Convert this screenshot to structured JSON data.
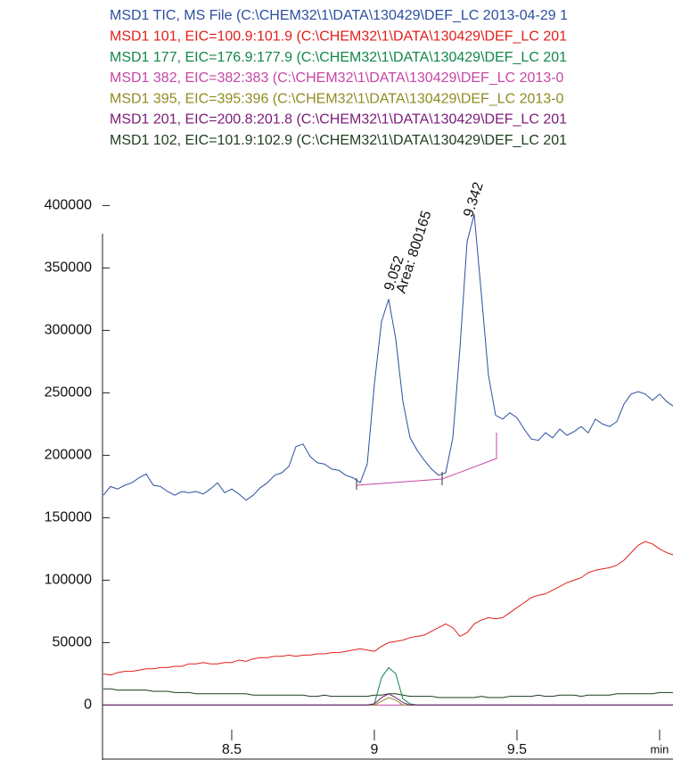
{
  "chart_data": {
    "type": "line",
    "x": [
      8.05,
      8.075,
      8.1,
      8.125,
      8.15,
      8.175,
      8.2,
      8.225,
      8.25,
      8.275,
      8.3,
      8.325,
      8.35,
      8.375,
      8.4,
      8.425,
      8.45,
      8.475,
      8.5,
      8.525,
      8.55,
      8.575,
      8.6,
      8.625,
      8.65,
      8.675,
      8.7,
      8.725,
      8.75,
      8.775,
      8.8,
      8.825,
      8.85,
      8.875,
      8.9,
      8.925,
      8.95,
      8.975,
      9.0,
      9.025,
      9.05,
      9.075,
      9.1,
      9.125,
      9.15,
      9.175,
      9.2,
      9.225,
      9.25,
      9.275,
      9.3,
      9.325,
      9.35,
      9.375,
      9.4,
      9.425,
      9.45,
      9.475,
      9.5,
      9.525,
      9.55,
      9.575,
      9.6,
      9.625,
      9.65,
      9.675,
      9.7,
      9.725,
      9.75,
      9.775,
      9.8,
      9.825,
      9.85,
      9.875,
      9.9,
      9.925,
      9.95,
      9.975,
      10.0,
      10.025,
      10.05
    ],
    "series": [
      {
        "name": "MSD1 TIC, MS File (C:\\CHEM32\\1\\DATA\\130429\\DEF_LC 2013-04-29 1",
        "color": "#2c4f9e",
        "values": [
          168000,
          175000,
          173000,
          176000,
          178000,
          182000,
          185000,
          176000,
          175000,
          171000,
          168000,
          171000,
          170000,
          171000,
          169000,
          173000,
          178000,
          170000,
          173000,
          169000,
          164000,
          168000,
          174000,
          178000,
          184000,
          186000,
          191000,
          207000,
          209000,
          199000,
          194000,
          193000,
          189000,
          188000,
          184000,
          182000,
          178000,
          193000,
          257000,
          307000,
          325000,
          293000,
          243000,
          214000,
          204000,
          196000,
          189000,
          184000,
          186000,
          214000,
          286000,
          371000,
          393000,
          329000,
          264000,
          232000,
          229000,
          234000,
          230000,
          221000,
          213000,
          212000,
          218000,
          214000,
          221000,
          216000,
          219000,
          223000,
          218000,
          229000,
          225000,
          223000,
          227000,
          241000,
          249000,
          251000,
          249000,
          244000,
          249000,
          243000,
          239000
        ]
      },
      {
        "name": "MSD1 101, EIC=100.9:101.9 (C:\\CHEM32\\1\\DATA\\130429\\DEF_LC 201",
        "color": "#e0201c",
        "values": [
          25000,
          24000,
          26000,
          27000,
          27000,
          28000,
          29000,
          29000,
          30000,
          30000,
          31000,
          31000,
          33000,
          33000,
          34000,
          33000,
          33000,
          34000,
          34000,
          36000,
          35000,
          37000,
          38000,
          38000,
          39000,
          39000,
          40000,
          39000,
          40000,
          40000,
          41000,
          41000,
          42000,
          42000,
          43000,
          44000,
          45000,
          44000,
          43000,
          47000,
          50000,
          51000,
          52000,
          54000,
          55000,
          56000,
          59000,
          62000,
          65000,
          62000,
          55000,
          58000,
          65000,
          68000,
          70000,
          69000,
          70000,
          74000,
          78000,
          82000,
          86000,
          88000,
          89000,
          92000,
          95000,
          98000,
          100000,
          102000,
          106000,
          108000,
          109000,
          110000,
          112000,
          116000,
          122000,
          128000,
          131000,
          129000,
          125000,
          122000,
          120000
        ]
      },
      {
        "name": "MSD1 177, EIC=176.9:177.9 (C:\\CHEM32\\1\\DATA\\130429\\DEF_LC 201",
        "color": "#13864a",
        "values": [
          0,
          0,
          0,
          0,
          0,
          0,
          0,
          0,
          0,
          0,
          0,
          0,
          0,
          0,
          0,
          0,
          0,
          0,
          0,
          0,
          0,
          0,
          0,
          0,
          0,
          0,
          0,
          0,
          0,
          0,
          0,
          0,
          0,
          0,
          0,
          0,
          0,
          0,
          1000,
          22000,
          30000,
          25000,
          5000,
          1000,
          0,
          0,
          0,
          0,
          0,
          0,
          0,
          0,
          0,
          0,
          0,
          0,
          0,
          0,
          0,
          0,
          0,
          0,
          0,
          0,
          0,
          0,
          0,
          0,
          0,
          0,
          0,
          0,
          0,
          0,
          0,
          0,
          0,
          0,
          0,
          0,
          0
        ]
      },
      {
        "name": "MSD1 382, EIC=382:383 (C:\\CHEM32\\1\\DATA\\130429\\DEF_LC 2013-0",
        "color": "#c746a6",
        "values": [
          0,
          0,
          0,
          0,
          0,
          0,
          0,
          0,
          0,
          0,
          0,
          0,
          0,
          0,
          0,
          0,
          0,
          0,
          0,
          0,
          0,
          0,
          0,
          0,
          0,
          0,
          0,
          0,
          0,
          0,
          0,
          0,
          0,
          0,
          0,
          0,
          0,
          0,
          0,
          0,
          0,
          0,
          0,
          0,
          0,
          0,
          0,
          0,
          0,
          0,
          0,
          0,
          0,
          0,
          0,
          0,
          0,
          0,
          0,
          0,
          0,
          0,
          0,
          0,
          0,
          0,
          0,
          0,
          0,
          0,
          0,
          0,
          0,
          0,
          0,
          0,
          0,
          0,
          0,
          0,
          0
        ]
      },
      {
        "name": "MSD1 395, EIC=395:396 (C:\\CHEM32\\1\\DATA\\130429\\DEF_LC 2013-0",
        "color": "#8f8c22",
        "values": [
          0,
          0,
          0,
          0,
          0,
          0,
          0,
          0,
          0,
          0,
          0,
          0,
          0,
          0,
          0,
          0,
          0,
          0,
          0,
          0,
          0,
          0,
          0,
          0,
          0,
          0,
          0,
          0,
          0,
          0,
          0,
          0,
          0,
          0,
          0,
          0,
          0,
          0,
          0,
          3000,
          6000,
          4000,
          0,
          0,
          0,
          0,
          0,
          0,
          0,
          0,
          0,
          0,
          0,
          0,
          0,
          0,
          0,
          0,
          0,
          0,
          0,
          0,
          0,
          0,
          0,
          0,
          0,
          0,
          0,
          0,
          0,
          0,
          0,
          0,
          0,
          0,
          0,
          0,
          0,
          0,
          0
        ]
      },
      {
        "name": "MSD1 201, EIC=200.8:201.8 (C:\\CHEM32\\1\\DATA\\130429\\DEF_LC 201",
        "color": "#7a1a78",
        "values": [
          0,
          0,
          0,
          0,
          0,
          0,
          0,
          0,
          0,
          0,
          0,
          0,
          0,
          0,
          0,
          0,
          0,
          0,
          0,
          0,
          0,
          0,
          0,
          0,
          0,
          0,
          0,
          0,
          0,
          0,
          0,
          0,
          0,
          0,
          0,
          0,
          0,
          0,
          1000,
          6000,
          9000,
          6000,
          2000,
          0,
          0,
          0,
          0,
          0,
          0,
          0,
          0,
          0,
          0,
          0,
          0,
          0,
          0,
          0,
          0,
          0,
          0,
          0,
          0,
          0,
          0,
          0,
          0,
          0,
          0,
          0,
          0,
          0,
          0,
          0,
          0,
          0,
          0,
          0,
          0,
          0,
          0
        ]
      },
      {
        "name": "MSD1 102, EIC=101.9:102.9 (C:\\CHEM32\\1\\DATA\\130429\\DEF_LC 201",
        "color": "#1d3d1d",
        "values": [
          13000,
          13000,
          12000,
          12000,
          12000,
          12000,
          12000,
          11000,
          11000,
          11000,
          10000,
          10000,
          10000,
          9000,
          9000,
          9000,
          9000,
          9000,
          9000,
          9000,
          9000,
          8000,
          8000,
          8000,
          8000,
          8000,
          8000,
          8000,
          8000,
          7000,
          7000,
          8000,
          7000,
          7000,
          7000,
          7000,
          7000,
          7000,
          8000,
          8000,
          9000,
          9000,
          8000,
          7000,
          7000,
          7000,
          7000,
          6000,
          6000,
          6000,
          6000,
          6000,
          6000,
          7000,
          6000,
          6000,
          6000,
          7000,
          7000,
          7000,
          7000,
          8000,
          7000,
          7000,
          8000,
          8000,
          8000,
          7000,
          8000,
          8000,
          8000,
          8000,
          9000,
          9000,
          9000,
          9000,
          9000,
          9000,
          10000,
          10000,
          10000
        ]
      }
    ],
    "xlim": [
      8.047,
      10.047
    ],
    "xticks": [
      8.5,
      9,
      9.5,
      {
        "value": 10,
        "label": "min"
      }
    ],
    "ylim": [
      -44000,
      411000
    ],
    "yticks": [
      0,
      50000,
      100000,
      150000,
      200000,
      250000,
      300000,
      350000,
      400000
    ],
    "annotations": [
      {
        "text": "9.052",
        "x": 9.052,
        "y": 332000
      },
      {
        "text": "Area: 800165",
        "x": 9.094,
        "y": 330000
      },
      {
        "text": "9.342",
        "x": 9.33,
        "y": 391000
      }
    ]
  }
}
